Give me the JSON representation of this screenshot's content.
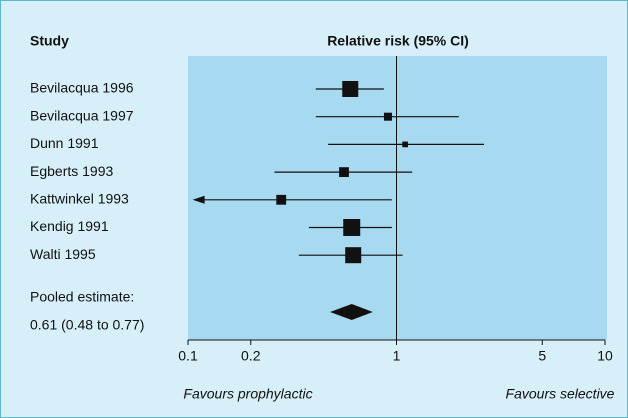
{
  "chart_data": {
    "type": "forest",
    "study_header": "Study",
    "axis_header": "Relative risk (95% CI)",
    "studies": [
      {
        "name": "Bevilacqua 1996",
        "value": 0.6,
        "lower": 0.41,
        "upper": 0.87,
        "weight": 16
      },
      {
        "name": "Bevilacqua 1997",
        "value": 0.91,
        "lower": 0.41,
        "upper": 1.99,
        "weight": 4
      },
      {
        "name": "Dunn 1991",
        "value": 1.1,
        "lower": 0.47,
        "upper": 2.63,
        "weight": 2
      },
      {
        "name": "Egberts 1993",
        "value": 0.56,
        "lower": 0.26,
        "upper": 1.19,
        "weight": 6
      },
      {
        "name": "Kattwinkel 1993",
        "value": 0.28,
        "lower": 0.11,
        "upper": 0.95,
        "weight": 6,
        "lower_arrow": true
      },
      {
        "name": "Kendig 1991",
        "value": 0.61,
        "lower": 0.38,
        "upper": 0.95,
        "weight": 18
      },
      {
        "name": "Walti 1995",
        "value": 0.62,
        "lower": 0.34,
        "upper": 1.07,
        "weight": 16
      }
    ],
    "pooled": {
      "label": "Pooled estimate:",
      "summary": "0.61 (0.48 to 0.77)",
      "value": 0.61,
      "lower": 0.48,
      "upper": 0.77
    },
    "reference_line": 1,
    "xscale": "log",
    "xlim": [
      0.1,
      10
    ],
    "xticks": [
      0.1,
      0.2,
      1,
      5,
      10
    ],
    "left_note": "Favours prophylactic",
    "right_note": "Favours selective"
  }
}
